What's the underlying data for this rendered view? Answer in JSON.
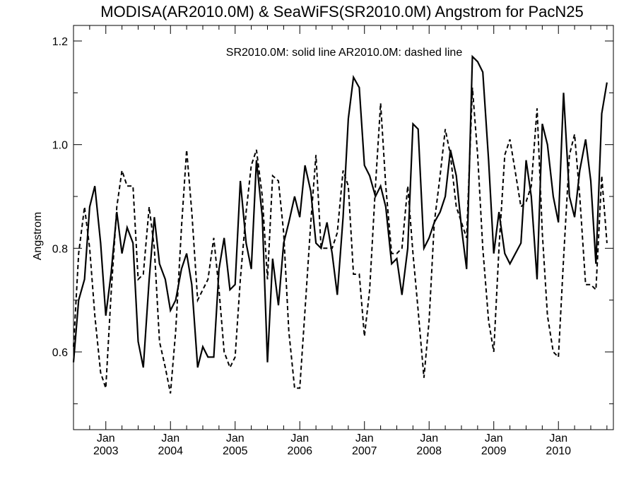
{
  "chart_data": {
    "type": "line",
    "title": "MODISA(AR2010.0M) & SeaWiFS(SR2010.0M)  Angstrom for PacN25",
    "annotation": "SR2010.0M: solid line   AR2010.0M: dashed line",
    "ylabel": "Angstrom",
    "xlabel": "",
    "x_unit": "year",
    "xlim": [
      2002.5,
      2010.85
    ],
    "ylim": [
      0.45,
      1.23
    ],
    "y_ticks": [
      0.6,
      0.8,
      1.0,
      1.2
    ],
    "y_tick_labels": [
      "0.6",
      "0.8",
      "1.0",
      "1.2"
    ],
    "x_ticks": [
      {
        "value": 2003.0,
        "month": "Jan",
        "year": "2003"
      },
      {
        "value": 2004.0,
        "month": "Jan",
        "year": "2004"
      },
      {
        "value": 2005.0,
        "month": "Jan",
        "year": "2005"
      },
      {
        "value": 2006.0,
        "month": "Jan",
        "year": "2006"
      },
      {
        "value": 2007.0,
        "month": "Jan",
        "year": "2007"
      },
      {
        "value": 2008.0,
        "month": "Jan",
        "year": "2008"
      },
      {
        "value": 2009.0,
        "month": "Jan",
        "year": "2009"
      },
      {
        "value": 2010.0,
        "month": "Jan",
        "year": "2010"
      }
    ],
    "grid": false,
    "series": [
      {
        "style": "solid",
        "color": "#000000",
        "points": [
          [
            2002.5,
            0.58
          ],
          [
            2002.58,
            0.7
          ],
          [
            2002.67,
            0.74
          ],
          [
            2002.75,
            0.88
          ],
          [
            2002.83,
            0.92
          ],
          [
            2002.92,
            0.81
          ],
          [
            2003.0,
            0.67
          ],
          [
            2003.08,
            0.75
          ],
          [
            2003.17,
            0.87
          ],
          [
            2003.25,
            0.79
          ],
          [
            2003.33,
            0.84
          ],
          [
            2003.42,
            0.81
          ],
          [
            2003.5,
            0.62
          ],
          [
            2003.58,
            0.57
          ],
          [
            2003.67,
            0.74
          ],
          [
            2003.75,
            0.86
          ],
          [
            2003.83,
            0.77
          ],
          [
            2003.92,
            0.74
          ],
          [
            2004.0,
            0.68
          ],
          [
            2004.08,
            0.7
          ],
          [
            2004.17,
            0.76
          ],
          [
            2004.25,
            0.79
          ],
          [
            2004.33,
            0.73
          ],
          [
            2004.42,
            0.57
          ],
          [
            2004.5,
            0.61
          ],
          [
            2004.58,
            0.59
          ],
          [
            2004.67,
            0.59
          ],
          [
            2004.75,
            0.76
          ],
          [
            2004.83,
            0.82
          ],
          [
            2004.92,
            0.72
          ],
          [
            2005.0,
            0.73
          ],
          [
            2005.08,
            0.93
          ],
          [
            2005.17,
            0.81
          ],
          [
            2005.25,
            0.76
          ],
          [
            2005.33,
            0.97
          ],
          [
            2005.42,
            0.86
          ],
          [
            2005.5,
            0.58
          ],
          [
            2005.58,
            0.78
          ],
          [
            2005.67,
            0.69
          ],
          [
            2005.75,
            0.81
          ],
          [
            2005.83,
            0.85
          ],
          [
            2005.92,
            0.9
          ],
          [
            2006.0,
            0.86
          ],
          [
            2006.08,
            0.96
          ],
          [
            2006.17,
            0.91
          ],
          [
            2006.25,
            0.81
          ],
          [
            2006.33,
            0.8
          ],
          [
            2006.42,
            0.85
          ],
          [
            2006.5,
            0.79
          ],
          [
            2006.58,
            0.71
          ],
          [
            2006.67,
            0.86
          ],
          [
            2006.75,
            1.05
          ],
          [
            2006.83,
            1.13
          ],
          [
            2006.92,
            1.11
          ],
          [
            2007.0,
            0.96
          ],
          [
            2007.08,
            0.94
          ],
          [
            2007.17,
            0.9
          ],
          [
            2007.25,
            0.92
          ],
          [
            2007.33,
            0.88
          ],
          [
            2007.42,
            0.77
          ],
          [
            2007.5,
            0.78
          ],
          [
            2007.58,
            0.71
          ],
          [
            2007.67,
            0.8
          ],
          [
            2007.75,
            1.04
          ],
          [
            2007.83,
            1.03
          ],
          [
            2007.92,
            0.8
          ],
          [
            2008.0,
            0.82
          ],
          [
            2008.08,
            0.85
          ],
          [
            2008.17,
            0.87
          ],
          [
            2008.25,
            0.9
          ],
          [
            2008.33,
            0.99
          ],
          [
            2008.42,
            0.94
          ],
          [
            2008.5,
            0.84
          ],
          [
            2008.58,
            0.76
          ],
          [
            2008.67,
            1.17
          ],
          [
            2008.75,
            1.16
          ],
          [
            2008.83,
            1.14
          ],
          [
            2008.92,
            0.97
          ],
          [
            2009.0,
            0.79
          ],
          [
            2009.08,
            0.87
          ],
          [
            2009.17,
            0.79
          ],
          [
            2009.25,
            0.77
          ],
          [
            2009.42,
            0.81
          ],
          [
            2009.5,
            0.97
          ],
          [
            2009.58,
            0.9
          ],
          [
            2009.67,
            0.74
          ],
          [
            2009.75,
            1.04
          ],
          [
            2009.83,
            1.0
          ],
          [
            2009.92,
            0.9
          ],
          [
            2010.0,
            0.85
          ],
          [
            2010.08,
            1.1
          ],
          [
            2010.17,
            0.9
          ],
          [
            2010.25,
            0.86
          ],
          [
            2010.33,
            0.95
          ],
          [
            2010.42,
            1.01
          ],
          [
            2010.5,
            0.93
          ],
          [
            2010.58,
            0.77
          ],
          [
            2010.67,
            1.06
          ],
          [
            2010.75,
            1.12
          ]
        ]
      },
      {
        "style": "dashed",
        "color": "#000000",
        "points": [
          [
            2002.5,
            0.61
          ],
          [
            2002.58,
            0.79
          ],
          [
            2002.67,
            0.88
          ],
          [
            2002.75,
            0.8
          ],
          [
            2002.83,
            0.67
          ],
          [
            2002.92,
            0.56
          ],
          [
            2003.0,
            0.53
          ],
          [
            2003.08,
            0.71
          ],
          [
            2003.17,
            0.88
          ],
          [
            2003.25,
            0.95
          ],
          [
            2003.33,
            0.92
          ],
          [
            2003.42,
            0.92
          ],
          [
            2003.5,
            0.74
          ],
          [
            2003.58,
            0.75
          ],
          [
            2003.67,
            0.88
          ],
          [
            2003.75,
            0.8
          ],
          [
            2003.83,
            0.62
          ],
          [
            2003.92,
            0.57
          ],
          [
            2004.0,
            0.52
          ],
          [
            2004.08,
            0.64
          ],
          [
            2004.17,
            0.84
          ],
          [
            2004.25,
            0.99
          ],
          [
            2004.33,
            0.87
          ],
          [
            2004.42,
            0.7
          ],
          [
            2004.5,
            0.72
          ],
          [
            2004.58,
            0.74
          ],
          [
            2004.67,
            0.82
          ],
          [
            2004.75,
            0.72
          ],
          [
            2004.83,
            0.6
          ],
          [
            2004.92,
            0.57
          ],
          [
            2005.0,
            0.59
          ],
          [
            2005.08,
            0.74
          ],
          [
            2005.17,
            0.87
          ],
          [
            2005.25,
            0.96
          ],
          [
            2005.33,
            0.99
          ],
          [
            2005.42,
            0.9
          ],
          [
            2005.5,
            0.74
          ],
          [
            2005.58,
            0.94
          ],
          [
            2005.67,
            0.93
          ],
          [
            2005.75,
            0.83
          ],
          [
            2005.83,
            0.64
          ],
          [
            2005.92,
            0.53
          ],
          [
            2006.0,
            0.53
          ],
          [
            2006.08,
            0.68
          ],
          [
            2006.17,
            0.85
          ],
          [
            2006.25,
            0.98
          ],
          [
            2006.33,
            0.8
          ],
          [
            2006.42,
            0.8
          ],
          [
            2006.5,
            0.8
          ],
          [
            2006.58,
            0.83
          ],
          [
            2006.67,
            0.95
          ],
          [
            2006.75,
            0.92
          ],
          [
            2006.83,
            0.75
          ],
          [
            2006.92,
            0.75
          ],
          [
            2007.0,
            0.63
          ],
          [
            2007.08,
            0.72
          ],
          [
            2007.17,
            0.92
          ],
          [
            2007.25,
            1.08
          ],
          [
            2007.33,
            0.92
          ],
          [
            2007.42,
            0.79
          ],
          [
            2007.5,
            0.79
          ],
          [
            2007.58,
            0.8
          ],
          [
            2007.67,
            0.92
          ],
          [
            2007.75,
            0.79
          ],
          [
            2007.83,
            0.68
          ],
          [
            2007.92,
            0.55
          ],
          [
            2008.0,
            0.66
          ],
          [
            2008.08,
            0.85
          ],
          [
            2008.17,
            0.94
          ],
          [
            2008.25,
            1.03
          ],
          [
            2008.33,
            0.98
          ],
          [
            2008.42,
            0.88
          ],
          [
            2008.5,
            0.85
          ],
          [
            2008.58,
            0.82
          ],
          [
            2008.67,
            1.11
          ],
          [
            2008.75,
            0.98
          ],
          [
            2008.83,
            0.8
          ],
          [
            2008.92,
            0.66
          ],
          [
            2009.0,
            0.6
          ],
          [
            2009.08,
            0.8
          ],
          [
            2009.17,
            0.98
          ],
          [
            2009.25,
            1.01
          ],
          [
            2009.33,
            0.95
          ],
          [
            2009.42,
            0.88
          ],
          [
            2009.5,
            0.89
          ],
          [
            2009.58,
            0.92
          ],
          [
            2009.67,
            1.07
          ],
          [
            2009.75,
            0.83
          ],
          [
            2009.83,
            0.67
          ],
          [
            2009.92,
            0.6
          ],
          [
            2010.0,
            0.59
          ],
          [
            2010.08,
            0.78
          ],
          [
            2010.17,
            0.98
          ],
          [
            2010.25,
            1.02
          ],
          [
            2010.33,
            0.9
          ],
          [
            2010.42,
            0.73
          ],
          [
            2010.5,
            0.73
          ],
          [
            2010.58,
            0.72
          ],
          [
            2010.67,
            0.94
          ],
          [
            2010.75,
            0.81
          ]
        ]
      }
    ]
  }
}
